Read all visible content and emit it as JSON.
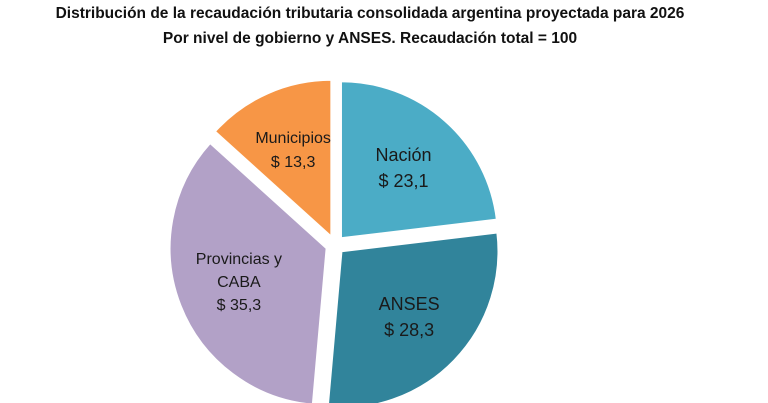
{
  "chart_data": {
    "type": "pie",
    "title": "Distribución de la recaudación tributaria consolidada argentina proyectada para 2026",
    "subtitle": "Por nivel de gobierno y ANSES. Recaudación total = 100",
    "categories": [
      "Nación",
      "ANSES",
      "Provincias y CABA",
      "Municipios"
    ],
    "values": [
      23.1,
      28.3,
      35.3,
      13.3
    ],
    "value_labels": [
      "$ 23,1",
      "$ 28,3",
      "$ 35,3",
      "$ 13,3"
    ],
    "colors": [
      "#4bacc6",
      "#31849b",
      "#b2a1c7",
      "#f79646"
    ]
  }
}
